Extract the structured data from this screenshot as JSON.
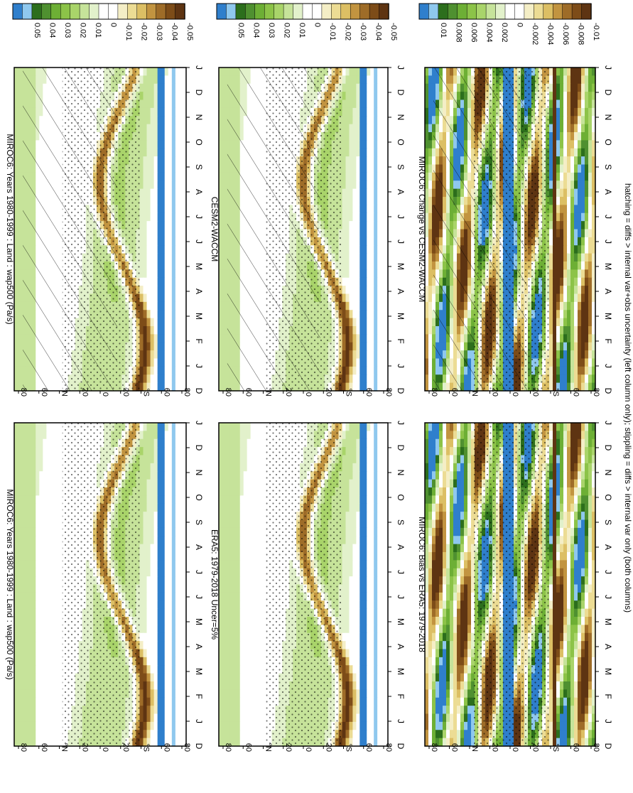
{
  "figure": {
    "footer": "hatching = diffs > internal var+obs uncertainty (left column only); stippling = diffs > internal var only (both columns)",
    "rotation": "page rotated 90 degrees clockwise (read with head tilted right)"
  },
  "palette": {
    "main": [
      "#2f7fcc",
      "#8fc8ee",
      "#2c6e1c",
      "#4f9030",
      "#6daf35",
      "#8cc348",
      "#a9d46a",
      "#c6e39a",
      "#e2f1cb",
      "#ffffff",
      "#ffffff",
      "#f4eec6",
      "#ecdc94",
      "#dcbf64",
      "#c29440",
      "#9e6c28",
      "#7d4c18",
      "#5e3412"
    ],
    "hatch": "#000000",
    "stipple": "#000000"
  },
  "colorbars": {
    "main_ticks": [
      "0.05",
      "0.04",
      "0.03",
      "0.02",
      "0.01",
      "0",
      "-0.01",
      "-0.02",
      "-0.03",
      "-0.04",
      "-0.05"
    ],
    "diff_ticks": [
      "0.01",
      "0.008",
      "0.006",
      "0.004",
      "0.002",
      "0",
      "-0.002",
      "-0.004",
      "-0.006",
      "-0.008",
      "-0.01"
    ]
  },
  "axes": {
    "months": [
      "D",
      "J",
      "F",
      "M",
      "A",
      "M",
      "J",
      "J",
      "A",
      "S",
      "O",
      "N",
      "D",
      "J"
    ],
    "lat_ticks": [
      "80",
      "60",
      "°N",
      "20",
      "0",
      "20",
      "°S",
      "60",
      "80"
    ]
  },
  "chart_data": [
    {
      "type": "heatmap",
      "title": "MIROC6: Years 1980-1999 : Land : wap500 (Pa/s)",
      "x": [
        "D",
        "J",
        "F",
        "M",
        "A",
        "M",
        "J",
        "J",
        "A",
        "S",
        "O",
        "N",
        "D",
        "J"
      ],
      "y": [
        "80N",
        "60N",
        "40N",
        "20N",
        "0",
        "20S",
        "40S",
        "60S",
        "80S"
      ],
      "colorbar": [
        "0.05",
        "0.04",
        "0.03",
        "0.02",
        "0.01",
        "0",
        "-0.01",
        "-0.02",
        "-0.03",
        "-0.04",
        "-0.05"
      ],
      "hatching": true,
      "stippling": true
    },
    {
      "type": "heatmap",
      "title": "MIROC6: Years 1980-1999 : Land : wap500 (Pa/s)",
      "x": [
        "D",
        "J",
        "F",
        "M",
        "A",
        "M",
        "J",
        "J",
        "A",
        "S",
        "O",
        "N",
        "D",
        "J"
      ],
      "y": [
        "80N",
        "60N",
        "40N",
        "20N",
        "0",
        "20S",
        "40S",
        "60S",
        "80S"
      ],
      "colorbar": [
        "0.05",
        "0.04",
        "0.03",
        "0.02",
        "0.01",
        "0",
        "-0.01",
        "-0.02",
        "-0.03",
        "-0.04",
        "-0.05"
      ],
      "hatching": false,
      "stippling": true
    },
    {
      "type": "heatmap",
      "title": "ERA5: 1979-2018 Uncer=5%",
      "x": [
        "D",
        "J",
        "F",
        "M",
        "A",
        "M",
        "J",
        "J",
        "A",
        "S",
        "O",
        "N",
        "D",
        "J"
      ],
      "y": [
        "80N",
        "60N",
        "40N",
        "20N",
        "0",
        "20S",
        "40S",
        "60S",
        "80S"
      ],
      "colorbar": [
        "0.05",
        "0.04",
        "0.03",
        "0.02",
        "0.01",
        "0",
        "-0.01",
        "-0.02",
        "-0.03",
        "-0.04",
        "-0.05"
      ],
      "hatching": true,
      "stippling": true
    },
    {
      "type": "heatmap",
      "title": "CESM2-WACCM",
      "x": [
        "D",
        "J",
        "F",
        "M",
        "A",
        "M",
        "J",
        "J",
        "A",
        "S",
        "O",
        "N",
        "D",
        "J"
      ],
      "y": [
        "80N",
        "60N",
        "40N",
        "20N",
        "0",
        "20S",
        "40S",
        "60S",
        "80S"
      ],
      "colorbar": [
        "0.05",
        "0.04",
        "0.03",
        "0.02",
        "0.01",
        "0",
        "-0.01",
        "-0.02",
        "-0.03",
        "-0.04",
        "-0.05"
      ],
      "hatching": false,
      "stippling": true
    },
    {
      "type": "heatmap",
      "title": "MIROC6: Bias vs ERA5: 1979-2018",
      "x": [
        "D",
        "J",
        "F",
        "M",
        "A",
        "M",
        "J",
        "J",
        "A",
        "S",
        "O",
        "N",
        "D",
        "J"
      ],
      "y": [
        "80N",
        "60N",
        "40N",
        "20N",
        "0",
        "20S",
        "40S",
        "60S",
        "80S"
      ],
      "colorbar": [
        "0.01",
        "0.008",
        "0.006",
        "0.004",
        "0.002",
        "0",
        "-0.002",
        "-0.004",
        "-0.006",
        "-0.008",
        "-0.01"
      ],
      "hatching": true,
      "stippling": true
    },
    {
      "type": "heatmap",
      "title": "MIROC6: Change vs CESM2-WACCM",
      "x": [
        "D",
        "J",
        "F",
        "M",
        "A",
        "M",
        "J",
        "J",
        "A",
        "S",
        "O",
        "N",
        "D",
        "J"
      ],
      "y": [
        "80N",
        "60N",
        "40N",
        "20N",
        "0",
        "20S",
        "40S",
        "60S",
        "80S"
      ],
      "colorbar": [
        "0.01",
        "0.008",
        "0.006",
        "0.004",
        "0.002",
        "0",
        "-0.002",
        "-0.004",
        "-0.006",
        "-0.008",
        "-0.01"
      ],
      "hatching": false,
      "stippling": true
    }
  ]
}
